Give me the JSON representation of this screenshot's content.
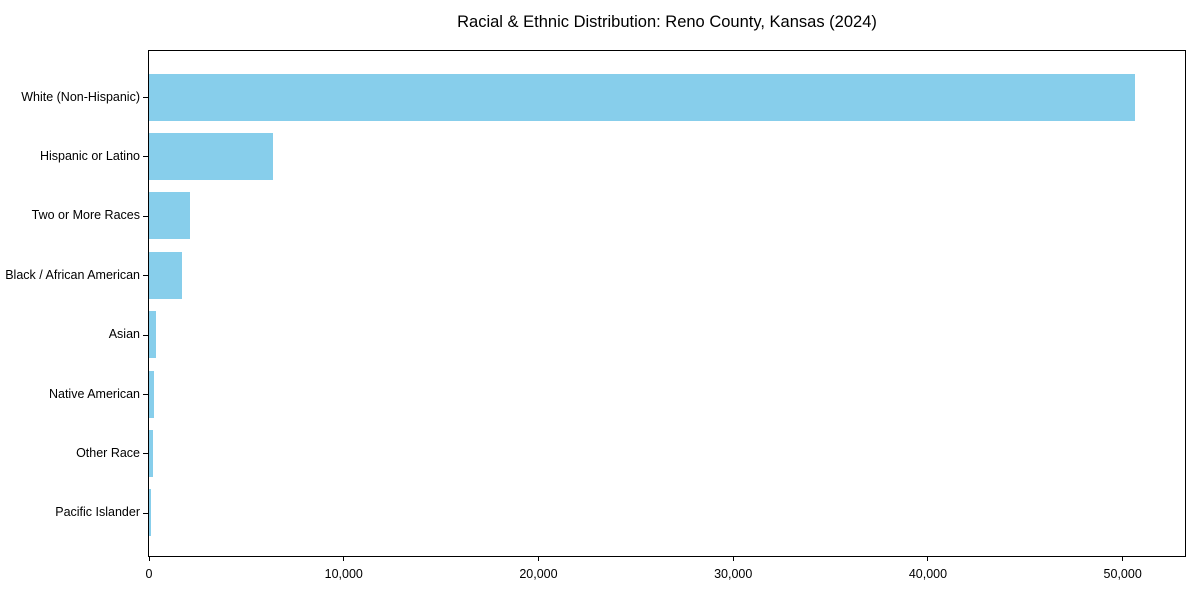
{
  "chart_data": {
    "type": "bar",
    "orientation": "horizontal",
    "title": "Racial & Ethnic Distribution: Reno County, Kansas (2024)",
    "xlabel": "",
    "ylabel": "",
    "categories": [
      "White (Non-Hispanic)",
      "Hispanic or Latino",
      "Two or More Races",
      "Black / African American",
      "Asian",
      "Native American",
      "Other Race",
      "Pacific Islander"
    ],
    "values": [
      50650,
      6350,
      2100,
      1670,
      345,
      240,
      185,
      100
    ],
    "xlim": [
      0,
      53200
    ],
    "x_ticks": [
      0,
      10000,
      20000,
      30000,
      40000,
      50000
    ],
    "x_tick_labels": [
      "0",
      "10,000",
      "20,000",
      "30,000",
      "40,000",
      "50,000"
    ],
    "bar_color": "#87CEEB",
    "axis_color": "#000000",
    "grid": false,
    "legend": "none"
  }
}
